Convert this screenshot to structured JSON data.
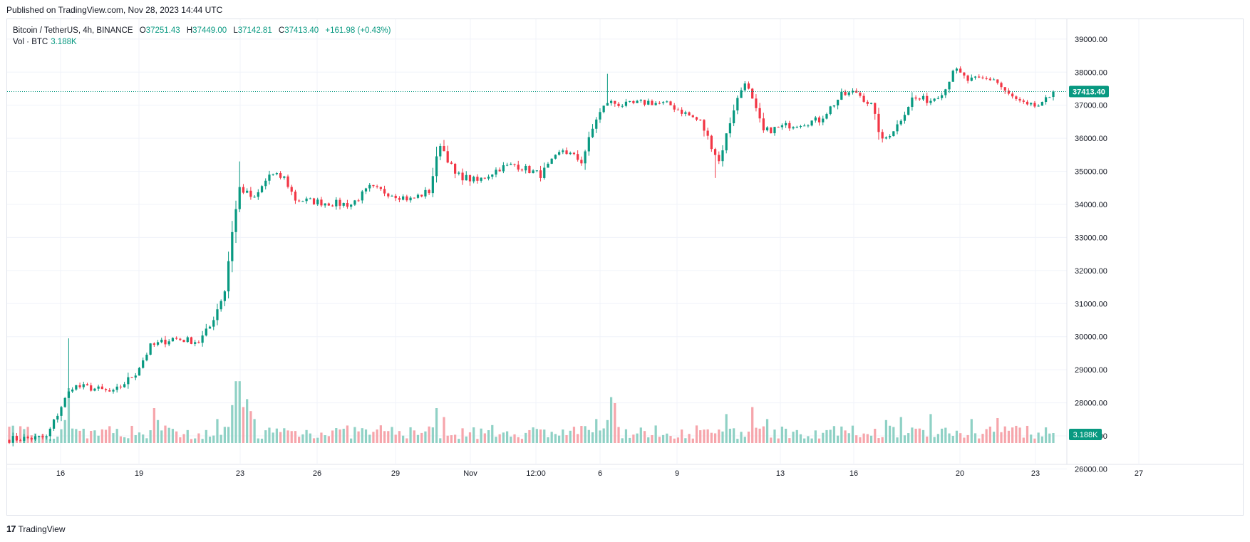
{
  "header": {
    "published": "Published on TradingView.com, Nov 28, 2023 14:44 UTC"
  },
  "legend": {
    "symbol": "Bitcoin / TetherUS, 4h, BINANCE",
    "open_label": "O",
    "open": "37251.43",
    "high_label": "H",
    "high": "37449.00",
    "low_label": "L",
    "low": "37142.81",
    "close_label": "C",
    "close": "37413.40",
    "change": "+161.98 (+0.43%)",
    "volume_label": "Vol · BTC",
    "volume_value": "3.188K"
  },
  "footer": {
    "brand_mark": "17",
    "brand": "TradingView"
  },
  "colors": {
    "up": "#089981",
    "down": "#f23645",
    "vol_up": "#8fd1c5",
    "vol_down": "#f6a5ab",
    "grid": "#f0f3fa",
    "accent": "#089981"
  },
  "chart_data": {
    "type": "candlestick",
    "interval": "4h",
    "price_axis": {
      "ticks": [
        "39000.00",
        "38000.00",
        "37000.00",
        "36000.00",
        "35000.00",
        "34000.00",
        "33000.00",
        "32000.00",
        "31000.00",
        "30000.00",
        "29000.00",
        "28000.00",
        "27000.00",
        "26000.00"
      ],
      "ylim": [
        25600,
        39600
      ]
    },
    "last_price": "37413.40",
    "last_volume": "3.188K",
    "time_axis": [
      "16",
      "19",
      "23",
      "26",
      "29",
      "Nov",
      "12:00",
      "6",
      "9",
      "13",
      "16",
      "20",
      "23",
      "27"
    ],
    "anchors": [
      {
        "bar": 0,
        "price": 26900
      },
      {
        "bar": 10,
        "price": 26950
      },
      {
        "bar": 14,
        "price": 27900
      },
      {
        "bar": 17,
        "price": 28500
      },
      {
        "bar": 22,
        "price": 28450
      },
      {
        "bar": 28,
        "price": 28300
      },
      {
        "bar": 34,
        "price": 28900
      },
      {
        "bar": 38,
        "price": 29700
      },
      {
        "bar": 44,
        "price": 29950
      },
      {
        "bar": 51,
        "price": 29850
      },
      {
        "bar": 54,
        "price": 30300
      },
      {
        "bar": 58,
        "price": 31400
      },
      {
        "bar": 60,
        "price": 33200
      },
      {
        "bar": 62,
        "price": 34500
      },
      {
        "bar": 66,
        "price": 34150
      },
      {
        "bar": 70,
        "price": 34900
      },
      {
        "bar": 74,
        "price": 34800
      },
      {
        "bar": 77,
        "price": 34150
      },
      {
        "bar": 85,
        "price": 34050
      },
      {
        "bar": 92,
        "price": 34000
      },
      {
        "bar": 97,
        "price": 34500
      },
      {
        "bar": 102,
        "price": 34350
      },
      {
        "bar": 108,
        "price": 34150
      },
      {
        "bar": 113,
        "price": 34400
      },
      {
        "bar": 116,
        "price": 35850
      },
      {
        "bar": 120,
        "price": 34900
      },
      {
        "bar": 126,
        "price": 34700
      },
      {
        "bar": 132,
        "price": 35100
      },
      {
        "bar": 136,
        "price": 35200
      },
      {
        "bar": 143,
        "price": 34900
      },
      {
        "bar": 149,
        "price": 35650
      },
      {
        "bar": 154,
        "price": 35300
      },
      {
        "bar": 158,
        "price": 36600
      },
      {
        "bar": 161,
        "price": 37100
      },
      {
        "bar": 166,
        "price": 37000
      },
      {
        "bar": 172,
        "price": 37100
      },
      {
        "bar": 178,
        "price": 37000
      },
      {
        "bar": 186,
        "price": 36500
      },
      {
        "bar": 191,
        "price": 35300
      },
      {
        "bar": 195,
        "price": 36900
      },
      {
        "bar": 198,
        "price": 37750
      },
      {
        "bar": 203,
        "price": 36200
      },
      {
        "bar": 210,
        "price": 36400
      },
      {
        "bar": 218,
        "price": 36550
      },
      {
        "bar": 224,
        "price": 37300
      },
      {
        "bar": 228,
        "price": 37400
      },
      {
        "bar": 232,
        "price": 37000
      },
      {
        "bar": 235,
        "price": 35900
      },
      {
        "bar": 239,
        "price": 36400
      },
      {
        "bar": 243,
        "price": 37200
      },
      {
        "bar": 248,
        "price": 37150
      },
      {
        "bar": 252,
        "price": 37500
      },
      {
        "bar": 254,
        "price": 38100
      },
      {
        "bar": 258,
        "price": 37750
      },
      {
        "bar": 265,
        "price": 37800
      },
      {
        "bar": 269,
        "price": 37300
      },
      {
        "bar": 274,
        "price": 36950
      },
      {
        "bar": 278,
        "price": 37000
      },
      {
        "bar": 281,
        "price": 37413
      }
    ],
    "volume_spikes": [
      {
        "bar": 16,
        "v": 0.55
      },
      {
        "bar": 15,
        "v": 0.23
      },
      {
        "bar": 39,
        "v": 0.35
      },
      {
        "bar": 40,
        "v": 0.23
      },
      {
        "bar": 56,
        "v": 0.24
      },
      {
        "bar": 60,
        "v": 0.38
      },
      {
        "bar": 61,
        "v": 0.62
      },
      {
        "bar": 62,
        "v": 0.62
      },
      {
        "bar": 63,
        "v": 0.36
      },
      {
        "bar": 64,
        "v": 0.44
      },
      {
        "bar": 65,
        "v": 0.32
      },
      {
        "bar": 66,
        "v": 0.24
      },
      {
        "bar": 115,
        "v": 0.35
      },
      {
        "bar": 117,
        "v": 0.26
      },
      {
        "bar": 158,
        "v": 0.24
      },
      {
        "bar": 161,
        "v": 0.23
      },
      {
        "bar": 162,
        "v": 0.46
      },
      {
        "bar": 163,
        "v": 0.4
      },
      {
        "bar": 193,
        "v": 0.29
      },
      {
        "bar": 200,
        "v": 0.36
      },
      {
        "bar": 204,
        "v": 0.24
      },
      {
        "bar": 240,
        "v": 0.26
      },
      {
        "bar": 248,
        "v": 0.29
      },
      {
        "bar": 259,
        "v": 0.24
      },
      {
        "bar": 266,
        "v": 0.25
      },
      {
        "bar": 236,
        "v": 0.23
      }
    ]
  }
}
